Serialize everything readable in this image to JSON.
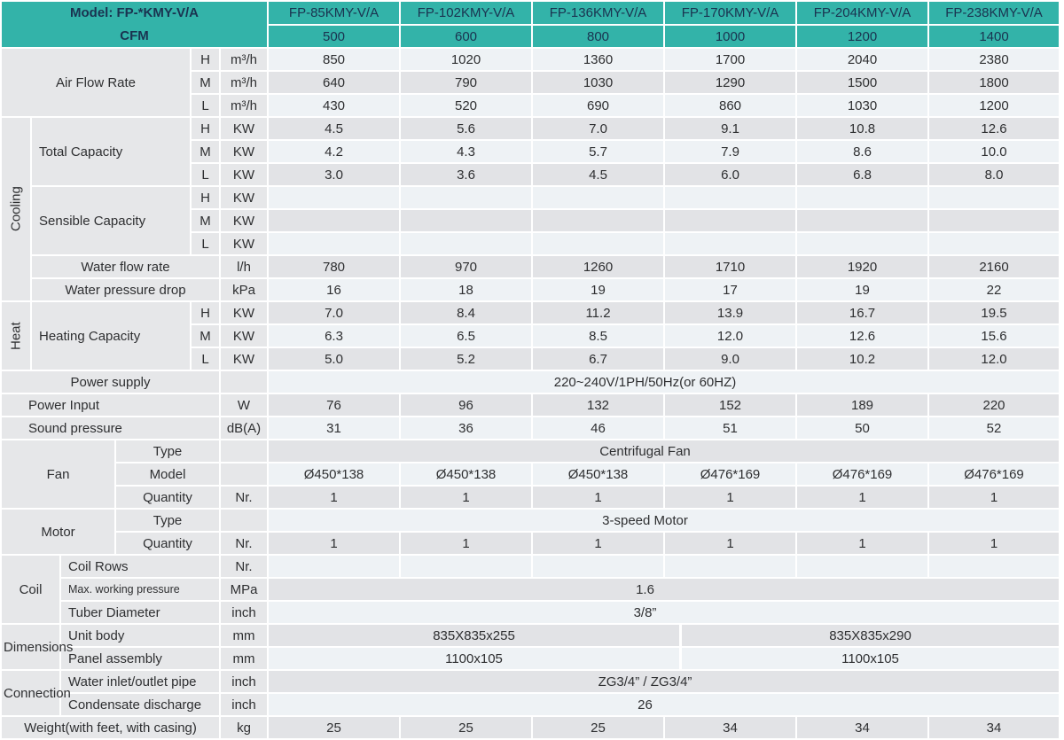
{
  "header": {
    "model_label": "Model: FP-*KMY-V/A",
    "cfm_label": "CFM",
    "models": [
      "FP-85KMY-V/A",
      "FP-102KMY-V/A",
      "FP-136KMY-V/A",
      "FP-170KMY-V/A",
      "FP-204KMY-V/A",
      "FP-238KMY-V/A"
    ],
    "cfm": [
      "500",
      "600",
      "800",
      "1000",
      "1200",
      "1400"
    ]
  },
  "speeds": [
    "H",
    "M",
    "L"
  ],
  "airflow": {
    "label": "Air Flow Rate",
    "unit": "m³/h",
    "H": [
      "850",
      "1020",
      "1360",
      "1700",
      "2040",
      "2380"
    ],
    "M": [
      "640",
      "790",
      "1030",
      "1290",
      "1500",
      "1800"
    ],
    "L": [
      "430",
      "520",
      "690",
      "860",
      "1030",
      "1200"
    ]
  },
  "cooling": {
    "label": "Cooling",
    "total": {
      "label": "Total Capacity",
      "unit": "KW",
      "H": [
        "4.5",
        "5.6",
        "7.0",
        "9.1",
        "10.8",
        "12.6"
      ],
      "M": [
        "4.2",
        "4.3",
        "5.7",
        "7.9",
        "8.6",
        "10.0"
      ],
      "L": [
        "3.0",
        "3.6",
        "4.5",
        "6.0",
        "6.8",
        "8.0"
      ]
    },
    "sensible": {
      "label": "Sensible Capacity",
      "unit": "KW",
      "H": [
        "",
        "",
        "",
        "",
        "",
        ""
      ],
      "M": [
        "",
        "",
        "",
        "",
        "",
        ""
      ],
      "L": [
        "",
        "",
        "",
        "",
        "",
        ""
      ]
    },
    "water_flow": {
      "label": "Water flow rate",
      "unit": "l/h",
      "values": [
        "780",
        "970",
        "1260",
        "1710",
        "1920",
        "2160"
      ]
    },
    "water_drop": {
      "label": "Water pressure drop",
      "unit": "kPa",
      "values": [
        "16",
        "18",
        "19",
        "17",
        "19",
        "22"
      ]
    }
  },
  "heat": {
    "label": "Heat",
    "heating": {
      "label": "Heating Capacity",
      "unit": "KW",
      "H": [
        "7.0",
        "8.4",
        "11.2",
        "13.9",
        "16.7",
        "19.5"
      ],
      "M": [
        "6.3",
        "6.5",
        "8.5",
        "12.0",
        "12.6",
        "15.6"
      ],
      "L": [
        "5.0",
        "5.2",
        "6.7",
        "9.0",
        "10.2",
        "12.0"
      ]
    }
  },
  "power_supply": {
    "label": "Power supply",
    "value": "220~240V/1PH/50Hz(or 60HZ)"
  },
  "power_input": {
    "label": "Power Input",
    "unit": "W",
    "values": [
      "76",
      "96",
      "132",
      "152",
      "189",
      "220"
    ]
  },
  "sound": {
    "label": "Sound pressure",
    "unit": "dB(A)",
    "values": [
      "31",
      "36",
      "46",
      "51",
      "50",
      "52"
    ]
  },
  "fan": {
    "label": "Fan",
    "type_label": "Type",
    "type_value": "Centrifugal Fan",
    "model_label": "Model",
    "models": [
      "Ø450*138",
      "Ø450*138",
      "Ø450*138",
      "Ø476*169",
      "Ø476*169",
      "Ø476*169"
    ],
    "qty_label": "Quantity",
    "qty_unit": "Nr.",
    "qty": [
      "1",
      "1",
      "1",
      "1",
      "1",
      "1"
    ]
  },
  "motor": {
    "label": "Motor",
    "type_label": "Type",
    "type_value": "3-speed Motor",
    "qty_label": "Quantity",
    "qty_unit": "Nr.",
    "qty": [
      "1",
      "1",
      "1",
      "1",
      "1",
      "1"
    ]
  },
  "coil": {
    "label": "Coil",
    "rows_label": "Coil Rows",
    "rows_unit": "Nr.",
    "rows_values": [
      "",
      "",
      "",
      "",
      "",
      ""
    ],
    "pressure_label": "Max. working pressure",
    "pressure_unit": "MPa",
    "pressure_value": "1.6",
    "tube_label": "Tuber Diameter",
    "tube_unit": "inch",
    "tube_value": "3/8”"
  },
  "dimensions": {
    "label": "Dimensions",
    "unit_body_label": "Unit body",
    "unit": "mm",
    "unit_body_values": [
      "835X835x255",
      "835X835x290"
    ],
    "panel_label": "Panel assembly",
    "panel_unit": "mm",
    "panel_values": [
      "1100x105",
      "1100x105"
    ]
  },
  "connection": {
    "label": "Connection",
    "inlet_label": "Water inlet/outlet pipe",
    "inlet_unit": "inch",
    "inlet_value": "ZG3/4” / ZG3/4”",
    "condensate_label": "Condensate discharge",
    "condensate_unit": "inch",
    "condensate_value": "26"
  },
  "weight": {
    "label": "Weight(with feet, with casing)",
    "unit": "kg",
    "values": [
      "25",
      "25",
      "25",
      "34",
      "34",
      "34"
    ]
  },
  "colors": {
    "teal": "#33b3a9",
    "header_text": "#1a3350",
    "label_bg": "#e6e7e9",
    "stripe_light": "#eef2f5",
    "stripe_gray": "#e2e3e6",
    "body_text": "#2e2f31"
  }
}
